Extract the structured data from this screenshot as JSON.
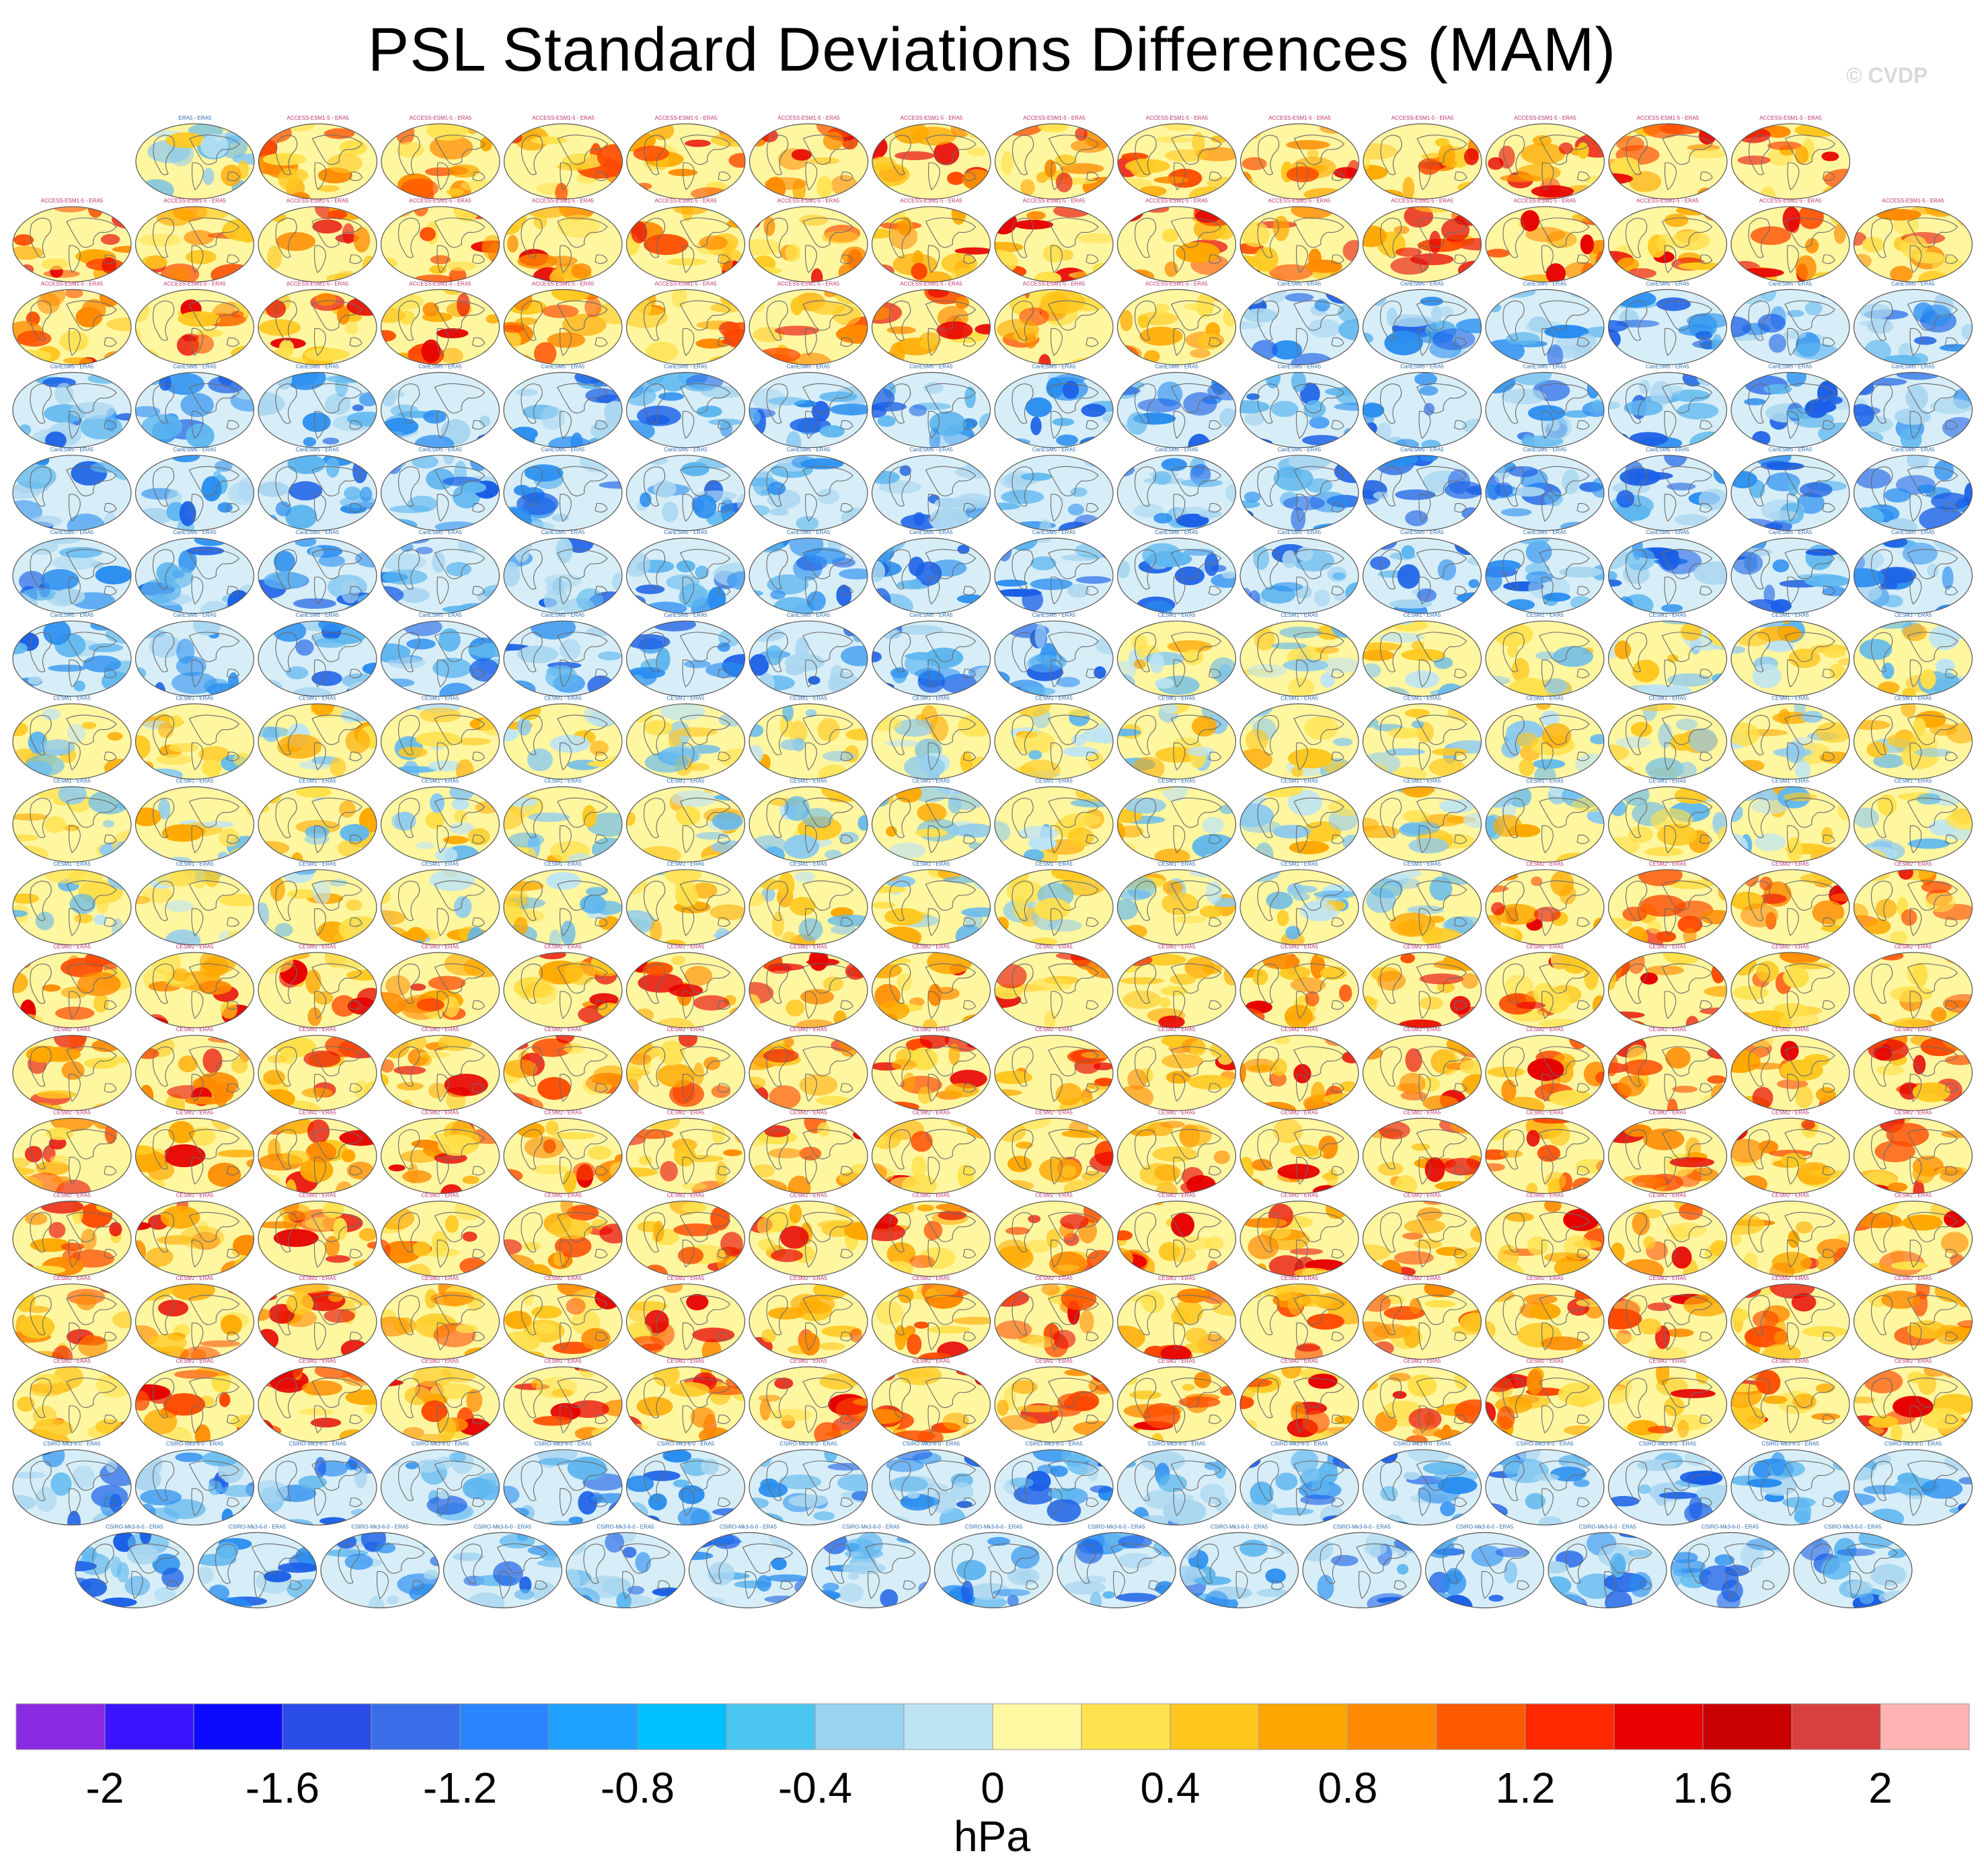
{
  "title": "PSL Standard Deviations Differences (MAM)",
  "credit": "© CVDP",
  "chart_data": {
    "type": "map-panel-grid",
    "variable": "PSL",
    "season": "MAM",
    "projection": "Robinson (global)",
    "reference_dataset": "ERA5",
    "panel_rows": [
      14,
      16,
      16,
      16,
      16,
      16,
      16,
      16,
      16,
      16,
      16,
      16,
      16,
      16,
      16,
      16,
      16,
      15
    ],
    "panel_groups": [
      {
        "first_panel": 1,
        "label": "ERA5 - ERA5",
        "dominant_sign": "mixed"
      },
      {
        "first_panel": 2,
        "label": "ACCESS-ESM1-5 - ERA5",
        "dominant_sign": "positive"
      },
      {
        "first_panel": 41,
        "label": "CanESM5 - ERA5",
        "dominant_sign": "negative"
      },
      {
        "first_panel": 104,
        "label": "CESM1 - ERA5",
        "dominant_sign": "mixed"
      },
      {
        "first_panel": 155,
        "label": "CESM2 - ERA5",
        "dominant_sign": "positive"
      },
      {
        "first_panel": 255,
        "label": "CSIRO-Mk3-6-0 - ERA5",
        "dominant_sign": "negative"
      }
    ],
    "colorbar": {
      "label": "hPa",
      "min": -2.2,
      "max": 2.2,
      "step": 0.2,
      "tick_labels": [
        "-2",
        "-1.6",
        "-1.2",
        "-0.8",
        "-0.4",
        "0",
        "0.4",
        "0.8",
        "1.2",
        "1.6",
        "2"
      ],
      "colors": [
        "#8a2be2",
        "#3a14ff",
        "#0b0bff",
        "#2a4ce8",
        "#3a6ee8",
        "#2a85ff",
        "#1ea0ff",
        "#00c0ff",
        "#4cc6f0",
        "#9ad3ee",
        "#bde4f4",
        "#fff8a3",
        "#ffe14d",
        "#ffc61e",
        "#ffa500",
        "#ff8a00",
        "#ff5a00",
        "#ff2800",
        "#e60000",
        "#c80000",
        "#d84040",
        "#ffb4b4"
      ]
    }
  }
}
